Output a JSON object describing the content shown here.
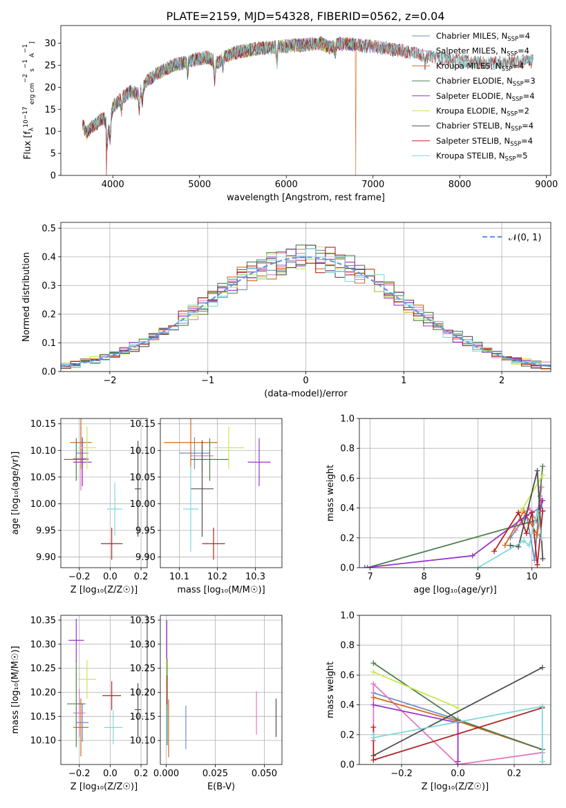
{
  "figure": {
    "title": "PLATE=2159, MJD=54328, FIBERID=0562, z=0.04"
  },
  "colors": {
    "grid": "#b0b0b0",
    "normal_curve": "#6495ed"
  },
  "chart_data": [
    {
      "id": "spectrum",
      "type": "line",
      "xlabel": "wavelength [Angstrom, rest frame]",
      "ylabel_parts": [
        "Flux [f",
        "λ",
        "10",
        "−17",
        " erg cm",
        "−2",
        " s",
        "−1",
        " A",
        "−1",
        "]"
      ],
      "xlim": [
        3400,
        9050
      ],
      "ylim": [
        0,
        34
      ],
      "xticks": [
        4000,
        5000,
        6000,
        7000,
        8000,
        9000
      ],
      "yticks": [
        0,
        5,
        10,
        15,
        20,
        25,
        30
      ],
      "grid": false,
      "legend_position": "top-right",
      "continuum": {
        "x": [
          3650,
          3700,
          3750,
          3800,
          3850,
          3900,
          3950,
          4000,
          4100,
          4200,
          4300,
          4400,
          4500,
          4600,
          4700,
          4800,
          4900,
          5000,
          5100,
          5200,
          5300,
          5400,
          5500,
          5600,
          5700,
          5800,
          5900,
          6000,
          6100,
          6200,
          6300,
          6400,
          6500,
          6600,
          6700,
          6800,
          6900,
          7000,
          7100,
          7200,
          7300,
          7400,
          7500,
          7600,
          7700,
          7800,
          7900,
          8000,
          8100,
          8200,
          8300,
          8400,
          8500,
          8600,
          8700,
          8800,
          8850
        ],
        "y": [
          11.5,
          9.5,
          11.0,
          11.5,
          12.5,
          13.0,
          10.0,
          15.5,
          17.5,
          19.0,
          18.5,
          21.5,
          23.0,
          24.0,
          25.0,
          25.5,
          26.0,
          26.5,
          26.8,
          25.5,
          27.0,
          27.8,
          28.2,
          28.6,
          28.8,
          29.0,
          29.2,
          29.3,
          29.5,
          29.6,
          29.8,
          30.0,
          29.0,
          29.8,
          29.8,
          29.6,
          29.4,
          29.2,
          29.0,
          28.6,
          28.4,
          28.0,
          27.6,
          27.0,
          26.8,
          26.5,
          26.2,
          26.0,
          25.8,
          25.6,
          25.5,
          25.5,
          25.6,
          25.7,
          25.8,
          25.9,
          25.9
        ]
      },
      "absorption_lines": [
        {
          "x": 3934,
          "depth": 5
        },
        {
          "x": 3969,
          "depth": 4
        },
        {
          "x": 4101,
          "depth": 3
        },
        {
          "x": 4305,
          "depth": 4
        },
        {
          "x": 4340,
          "depth": 3
        },
        {
          "x": 4861,
          "depth": 3
        },
        {
          "x": 5175,
          "depth": 5
        },
        {
          "x": 5270,
          "depth": 2
        },
        {
          "x": 5893,
          "depth": 4
        },
        {
          "x": 6563,
          "depth": 2
        },
        {
          "x": 7600,
          "depth": 2
        }
      ],
      "dropouts": [
        {
          "series": "Salpeter STELIB, NSSP=4",
          "x": 3925
        },
        {
          "series": "Kroupa MILES, NSSP=4",
          "x": 6800
        },
        {
          "series": "Kroupa MILES, NSSP=4",
          "x": 7410
        }
      ],
      "series": [
        {
          "name": "Chabrier MILES, N",
          "sub": "SSP",
          "suffix": "=4",
          "color": "#6c8ebf",
          "xmax": 7400
        },
        {
          "name": "Salpeter MILES, N",
          "sub": "SSP",
          "suffix": "=4",
          "color": "#e377c2",
          "xmax": 7400
        },
        {
          "name": "Kroupa MILES, N",
          "sub": "SSP",
          "suffix": "=4",
          "color": "#d2691e",
          "xmax": 7410
        },
        {
          "name": "Chabrier ELODIE, N",
          "sub": "SSP",
          "suffix": "=3",
          "color": "#4e7d4e",
          "xmax": 6800
        },
        {
          "name": "Salpeter ELODIE, N",
          "sub": "SSP",
          "suffix": "=4",
          "color": "#9932cc",
          "xmax": 6800
        },
        {
          "name": "Kroupa ELODIE, N",
          "sub": "SSP",
          "suffix": "=2",
          "color": "#c8e650",
          "xmax": 6800
        },
        {
          "name": "Chabrier STELIB, N",
          "sub": "SSP",
          "suffix": "=4",
          "color": "#4d4d4d",
          "xmax": 8850
        },
        {
          "name": "Salpeter STELIB, N",
          "sub": "SSP",
          "suffix": "=4",
          "color": "#b22222",
          "xmax": 8850
        },
        {
          "name": "Kroupa STELIB, N",
          "sub": "SSP",
          "suffix": "=5",
          "color": "#7fd8d8",
          "xmax": 8850
        }
      ]
    },
    {
      "id": "residuals",
      "type": "line",
      "xlabel": "(data-model)/error",
      "ylabel": "Normed distribution",
      "xlim": [
        -2.5,
        2.5
      ],
      "ylim": [
        0,
        0.52
      ],
      "xticks": [
        -2,
        -1,
        0,
        1,
        2
      ],
      "yticks": [
        0.0,
        0.1,
        0.2,
        0.3,
        0.4,
        0.5
      ],
      "ytick_labels": [
        "0.0",
        "0.1",
        "0.2",
        "0.3",
        "0.4",
        "0.5"
      ],
      "xtick_labels": [
        "−2",
        "−1",
        "0",
        "1",
        "2"
      ],
      "grid": true,
      "legend_position": "top-right",
      "legend": "𝒩(0, 1)",
      "bin_width": 0.1,
      "series_colors": [
        "#6c8ebf",
        "#e377c2",
        "#d2691e",
        "#4e7d4e",
        "#9932cc",
        "#c8e650",
        "#4d4d4d",
        "#b22222",
        "#7fd8d8"
      ]
    },
    {
      "id": "age-vs-Z",
      "type": "scatter",
      "xlabel": "Z [log₁₀(Z/Z☉)]",
      "ylabel": "age  [log₁₀(age/yr)]",
      "xlim": [
        -0.32,
        0.24
      ],
      "ylim": [
        9.88,
        10.16
      ],
      "xticks": [
        -0.2,
        0.0,
        0.2
      ],
      "xtick_labels": [
        "−0.2",
        "0.0",
        "0.2"
      ],
      "yticks": [
        9.9,
        9.95,
        10.0,
        10.05,
        10.1,
        10.15
      ],
      "ytick_labels": [
        "9.90",
        "9.95",
        "10.00",
        "10.05",
        "10.10",
        "10.15"
      ],
      "grid": true,
      "points": [
        {
          "color": "#6c8ebf",
          "x": -0.18,
          "xerr": 0.04,
          "y": 10.095,
          "yerr": 0.03
        },
        {
          "color": "#e377c2",
          "x": -0.19,
          "xerr": 0.05,
          "y": 10.085,
          "yerr": 0.06
        },
        {
          "color": "#d2691e",
          "x": -0.19,
          "xerr": 0.07,
          "y": 10.115,
          "yerr": 0.05
        },
        {
          "color": "#4e7d4e",
          "x": -0.22,
          "xerr": 0.08,
          "y": 10.083,
          "yerr": 0.04
        },
        {
          "color": "#9932cc",
          "x": -0.18,
          "xerr": 0.06,
          "y": 10.078,
          "yerr": 0.045
        },
        {
          "color": "#c8e650",
          "x": -0.15,
          "xerr": 0.06,
          "y": 10.105,
          "yerr": 0.04
        },
        {
          "color": "#4d4d4d",
          "x": 0.18,
          "xerr": 0.02,
          "y": 10.028,
          "yerr": 0.09
        },
        {
          "color": "#b22222",
          "x": 0.01,
          "xerr": 0.07,
          "y": 9.925,
          "yerr": 0.03
        },
        {
          "color": "#7fd8d8",
          "x": 0.03,
          "xerr": 0.05,
          "y": 9.99,
          "yerr": 0.05
        }
      ]
    },
    {
      "id": "age-vs-mass",
      "type": "scatter",
      "xlabel": "mass [log₁₀(M/M☉)]",
      "ylabel": "",
      "xlim": [
        10.05,
        10.37
      ],
      "ylim": [
        9.88,
        10.16
      ],
      "xticks": [
        10.1,
        10.2,
        10.3
      ],
      "xtick_labels": [
        "10.1",
        "10.2",
        "10.3"
      ],
      "yticks": [
        9.9,
        9.95,
        10.0,
        10.05,
        10.1,
        10.15
      ],
      "ytick_labels": [
        "9.90",
        "9.95",
        "10.00",
        "10.05",
        "10.10",
        "10.15"
      ],
      "grid": true,
      "points": [
        {
          "color": "#6c8ebf",
          "x": 10.14,
          "xerr": 0.04,
          "y": 10.095,
          "yerr": 0.03
        },
        {
          "color": "#e377c2",
          "x": 10.16,
          "xerr": 0.03,
          "y": 10.09,
          "yerr": 0.03
        },
        {
          "color": "#d2691e",
          "x": 10.13,
          "xerr": 0.07,
          "y": 10.115,
          "yerr": 0.05
        },
        {
          "color": "#4e7d4e",
          "x": 10.18,
          "xerr": 0.05,
          "y": 10.083,
          "yerr": 0.04
        },
        {
          "color": "#9932cc",
          "x": 10.31,
          "xerr": 0.03,
          "y": 10.078,
          "yerr": 0.045
        },
        {
          "color": "#c8e650",
          "x": 10.23,
          "xerr": 0.04,
          "y": 10.105,
          "yerr": 0.04
        },
        {
          "color": "#4d4d4d",
          "x": 10.16,
          "xerr": 0.03,
          "y": 10.028,
          "yerr": 0.09
        },
        {
          "color": "#b22222",
          "x": 10.19,
          "xerr": 0.03,
          "y": 9.925,
          "yerr": 0.03
        },
        {
          "color": "#7fd8d8",
          "x": 10.13,
          "xerr": 0.02,
          "y": 9.99,
          "yerr": 0.08
        }
      ]
    },
    {
      "id": "mass-vs-Z",
      "type": "scatter",
      "xlabel": "Z [log₁₀(Z/Z☉)]",
      "ylabel": "mass [log₁₀(M/M☉)]",
      "xlim": [
        -0.32,
        0.24
      ],
      "ylim": [
        10.05,
        10.36
      ],
      "xticks": [
        -0.2,
        0.0,
        0.2
      ],
      "xtick_labels": [
        "−0.2",
        "0.0",
        "0.2"
      ],
      "yticks": [
        10.1,
        10.15,
        10.2,
        10.25,
        10.3,
        10.35
      ],
      "ytick_labels": [
        "10.10",
        "10.15",
        "10.20",
        "10.25",
        "10.30",
        "10.35"
      ],
      "grid": true,
      "points": [
        {
          "color": "#6c8ebf",
          "x": -0.18,
          "xerr": 0.04,
          "y": 10.137,
          "yerr": 0.04
        },
        {
          "color": "#e377c2",
          "x": -0.2,
          "xerr": 0.04,
          "y": 10.157,
          "yerr": 0.05
        },
        {
          "color": "#d2691e",
          "x": -0.19,
          "xerr": 0.05,
          "y": 10.127,
          "yerr": 0.06
        },
        {
          "color": "#4e7d4e",
          "x": -0.22,
          "xerr": 0.06,
          "y": 10.176,
          "yerr": 0.09
        },
        {
          "color": "#9932cc",
          "x": -0.22,
          "xerr": 0.05,
          "y": 10.308,
          "yerr": 0.045
        },
        {
          "color": "#c8e650",
          "x": -0.15,
          "xerr": 0.06,
          "y": 10.227,
          "yerr": 0.04
        },
        {
          "color": "#4d4d4d",
          "x": 0.18,
          "xerr": 0.02,
          "y": 10.164,
          "yerr": 0.055
        },
        {
          "color": "#b22222",
          "x": 0.01,
          "xerr": 0.06,
          "y": 10.193,
          "yerr": 0.03
        },
        {
          "color": "#7fd8d8",
          "x": 0.02,
          "xerr": 0.06,
          "y": 10.127,
          "yerr": 0.035
        }
      ]
    },
    {
      "id": "mass-vs-EBV",
      "type": "scatter",
      "xlabel": "E(B-V)",
      "ylabel": "",
      "xlim": [
        -0.003,
        0.059
      ],
      "ylim": [
        10.05,
        10.36
      ],
      "xticks": [
        0.0,
        0.025,
        0.05
      ],
      "xtick_labels": [
        "0.000",
        "0.025",
        "0.050"
      ],
      "yticks": [
        10.1,
        10.15,
        10.2,
        10.25,
        10.3,
        10.35
      ],
      "ytick_labels": [
        "10.10",
        "10.15",
        "10.20",
        "10.25",
        "10.30",
        "10.35"
      ],
      "grid": true,
      "points": [
        {
          "color": "#6c8ebf",
          "x": 0.01,
          "xerr": 0,
          "y": 10.127,
          "yerr": 0.045
        },
        {
          "color": "#e377c2",
          "x": 0.046,
          "xerr": 0,
          "y": 10.157,
          "yerr": 0.045
        },
        {
          "color": "#d2691e",
          "x": 0.0012,
          "xerr": 0,
          "y": 10.125,
          "yerr": 0.06
        },
        {
          "color": "#4e7d4e",
          "x": 0.0005,
          "xerr": 0,
          "y": 10.18,
          "yerr": 0.09
        },
        {
          "color": "#9932cc",
          "x": 0.0003,
          "xerr": 0,
          "y": 10.31,
          "yerr": 0.04
        },
        {
          "color": "#c8e650",
          "x": 0.0001,
          "xerr": 0,
          "y": 10.23,
          "yerr": 0.04
        },
        {
          "color": "#4d4d4d",
          "x": 0.056,
          "xerr": 0,
          "y": 10.147,
          "yerr": 0.04
        },
        {
          "color": "#b22222",
          "x": 0.0004,
          "xerr": 0,
          "y": 10.205,
          "yerr": 0.03
        },
        {
          "color": "#7fd8d8",
          "x": 0.0002,
          "xerr": 0,
          "y": 10.127,
          "yerr": 0.035
        }
      ]
    },
    {
      "id": "mass-weight-vs-age",
      "type": "line",
      "xlabel": "age  [log₁₀(age/yr)]",
      "ylabel": "mass weight",
      "xlim": [
        6.8,
        10.35
      ],
      "ylim": [
        0,
        1
      ],
      "xticks": [
        7,
        8,
        9,
        10
      ],
      "xtick_labels": [
        "7",
        "8",
        "9",
        "10"
      ],
      "yticks": [
        0,
        0.2,
        0.4,
        0.6,
        0.8,
        1.0
      ],
      "ytick_labels": [
        "0.0",
        "0.2",
        "0.4",
        "0.6",
        "0.8",
        "1.0"
      ],
      "grid": true,
      "series": [
        {
          "color": "#6c8ebf",
          "x": [
            9.6,
            9.9,
            10.05,
            10.15,
            10.2
          ],
          "y": [
            0.2,
            0.35,
            0.05,
            0.48,
            0.38
          ]
        },
        {
          "color": "#e377c2",
          "x": [
            9.7,
            9.95,
            10.1,
            10.18
          ],
          "y": [
            0.25,
            0.4,
            0.3,
            0.54
          ]
        },
        {
          "color": "#d2691e",
          "x": [
            9.5,
            9.85,
            10.1,
            10.18
          ],
          "y": [
            0.15,
            0.38,
            0.22,
            0.45
          ]
        },
        {
          "color": "#4e7d4e",
          "x": [
            6.95,
            10.1,
            10.2
          ],
          "y": [
            0.0,
            0.32,
            0.68
          ]
        },
        {
          "color": "#9932cc",
          "x": [
            6.9,
            8.9,
            9.9,
            10.15,
            10.2
          ],
          "y": [
            0.0,
            0.08,
            0.35,
            0.4,
            0.45
          ]
        },
        {
          "color": "#c8e650",
          "x": [
            9.8,
            10.2
          ],
          "y": [
            0.38,
            0.62
          ]
        },
        {
          "color": "#4d4d4d",
          "x": [
            9.6,
            9.75,
            10.1,
            10.2
          ],
          "y": [
            0.15,
            0.14,
            0.65,
            0.06
          ]
        },
        {
          "color": "#b22222",
          "x": [
            9.3,
            9.75,
            9.9,
            10.0,
            10.1,
            10.2
          ],
          "y": [
            0.11,
            0.37,
            0.23,
            0.37,
            0.02,
            0.38
          ]
        },
        {
          "color": "#7fd8d8",
          "x": [
            9.0,
            9.85,
            9.95,
            10.1,
            10.18
          ],
          "y": [
            0.0,
            0.18,
            0.15,
            0.38,
            0.2
          ]
        }
      ]
    },
    {
      "id": "mass-weight-vs-Z",
      "type": "line",
      "xlabel": "Z [log₁₀(Z/Z☉)]",
      "ylabel": "mass weight",
      "xlim": [
        -0.35,
        0.33
      ],
      "ylim": [
        0,
        1
      ],
      "xticks": [
        -0.2,
        0.0,
        0.2
      ],
      "xtick_labels": [
        "−0.2",
        "0.0",
        "0.2"
      ],
      "yticks": [
        0,
        0.2,
        0.4,
        0.6,
        0.8,
        1.0
      ],
      "ytick_labels": [
        "0.0",
        "0.2",
        "0.4",
        "0.6",
        "0.8",
        "1.0"
      ],
      "grid": true,
      "series": [
        {
          "color": "#6c8ebf",
          "x": [
            -0.3,
            0.0,
            0.3,
            0.3
          ],
          "y": [
            0.48,
            0.3,
            0.1,
            0.02
          ]
        },
        {
          "color": "#e377c2",
          "x": [
            -0.3,
            -0.3,
            0.0,
            0.3
          ],
          "y": [
            0.16,
            0.54,
            0.0,
            0.08
          ]
        },
        {
          "color": "#d2691e",
          "x": [
            -0.3,
            0.0,
            0.3
          ],
          "y": [
            0.45,
            0.29,
            0.1
          ]
        },
        {
          "color": "#4e7d4e",
          "x": [
            -0.3,
            0.0,
            0.3
          ],
          "y": [
            0.68,
            0.3,
            0.1
          ]
        },
        {
          "color": "#9932cc",
          "x": [
            -0.3,
            0.0,
            0.0
          ],
          "y": [
            0.4,
            0.28,
            0.02
          ]
        },
        {
          "color": "#c8e650",
          "x": [
            -0.3,
            0.0
          ],
          "y": [
            0.62,
            0.38
          ]
        },
        {
          "color": "#4d4d4d",
          "x": [
            -0.3,
            0.3
          ],
          "y": [
            0.06,
            0.65
          ]
        },
        {
          "color": "#b22222",
          "x": [
            -0.3,
            -0.3,
            0.3
          ],
          "y": [
            0.25,
            0.03,
            0.38
          ]
        },
        {
          "color": "#7fd8d8",
          "x": [
            -0.3,
            -0.3,
            0.3,
            0.3
          ],
          "y": [
            0.2,
            0.18,
            0.39,
            0.02
          ]
        }
      ]
    }
  ]
}
